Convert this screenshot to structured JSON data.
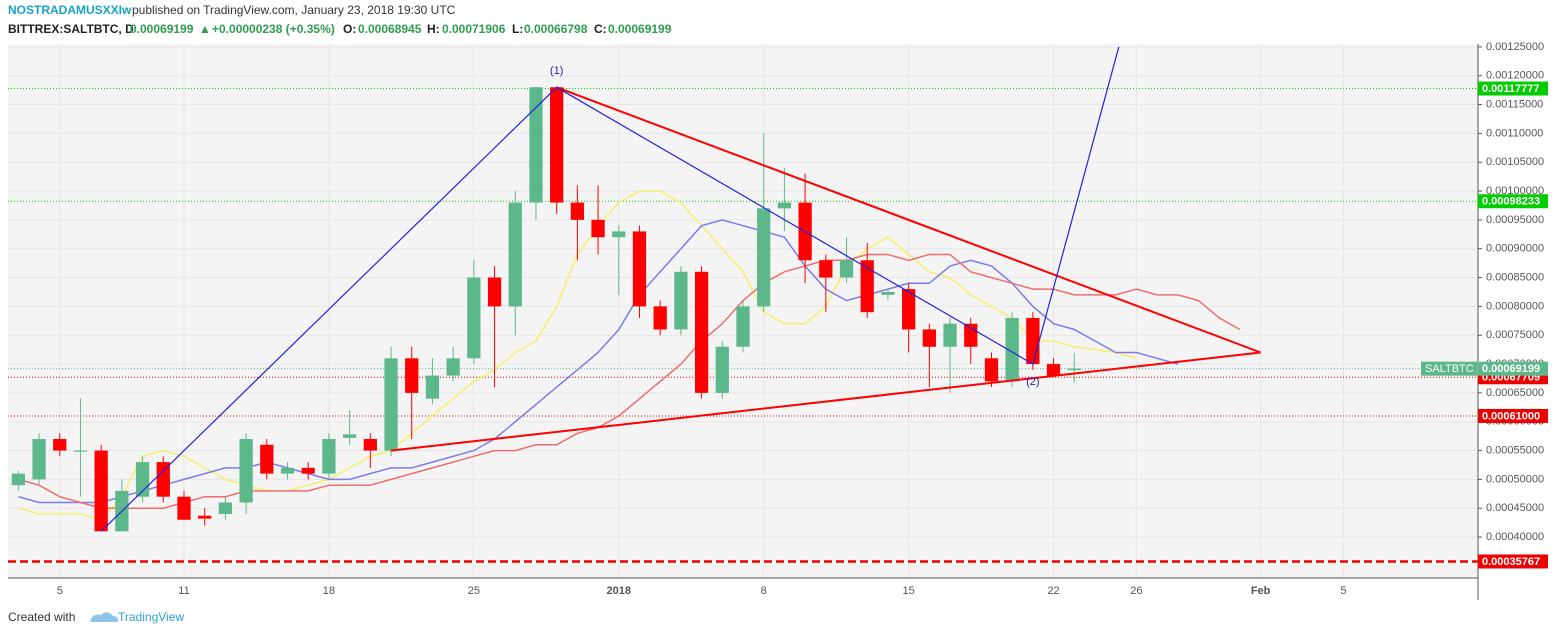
{
  "header": {
    "author": "NOSTRADAMUSXXIw",
    "published": "published on TradingView.com, January 23, 2018 19:30 UTC",
    "symbol": "BITTREX:SALTBTC, D",
    "last": "0.00069199",
    "arrow": "▲",
    "change": "+0.00000238 (+0.35%)",
    "o_label": "O:",
    "o": "0.00068945",
    "h_label": "H:",
    "h": "0.00071906",
    "l_label": "L:",
    "l": "0.00066798",
    "c_label": "C:",
    "c": "0.00069199"
  },
  "footer": {
    "created": "Created with",
    "brand": "TradingView"
  },
  "chart_data": {
    "type": "candlestick",
    "categories": [
      null,
      null,
      "5",
      null,
      null,
      null,
      null,
      null,
      "11",
      null,
      null,
      null,
      null,
      null,
      null,
      "18",
      null,
      null,
      null,
      null,
      null,
      null,
      "25",
      null,
      null,
      null,
      null,
      null,
      null,
      "2018",
      null,
      null,
      null,
      null,
      null,
      null,
      "8",
      null,
      null,
      null,
      null,
      null,
      null,
      "15",
      null,
      null,
      null,
      null,
      null,
      null,
      "22",
      null,
      null,
      null,
      "26",
      null,
      null,
      null,
      null,
      null,
      "Feb",
      null,
      null,
      null,
      "5",
      null,
      null,
      null,
      null,
      null,
      null
    ],
    "up_color": "#5cb88a",
    "down_color": "#ff0000",
    "open": [
      0.00049,
      0.0005,
      0.00057,
      0.000548,
      0.00055,
      0.00041,
      0.00047,
      0.00053,
      0.00047,
      0.000437,
      0.00044,
      0.00046,
      0.00056,
      0.00051,
      0.00052,
      0.00051,
      0.000572,
      0.00057,
      0.00055,
      0.00071,
      0.00064,
      0.00068,
      0.00071,
      0.00085,
      0.0008,
      0.00098,
      0.00118,
      0.00098,
      0.00095,
      0.00092,
      0.00093,
      0.0008,
      0.00076,
      0.00086,
      0.00065,
      0.00073,
      0.0008,
      0.00097,
      0.00098,
      0.00088,
      0.00085,
      0.00088,
      0.00082,
      0.00083,
      0.00076,
      0.00073,
      0.00077,
      0.00071,
      0.00067,
      0.00078,
      0.0007,
      0.00068945,
      null,
      null,
      null,
      null,
      null,
      null,
      null,
      null,
      null,
      null,
      null,
      null,
      null,
      null,
      null,
      null,
      null,
      null,
      null
    ],
    "high": [
      0.000515,
      0.00058,
      0.00058,
      0.00064,
      0.00056,
      0.0005,
      0.00054,
      0.00054,
      0.00048,
      0.00045,
      0.00047,
      0.00058,
      0.00057,
      0.00053,
      0.00053,
      0.00058,
      0.00062,
      0.00058,
      0.00073,
      0.00073,
      0.00071,
      0.00073,
      0.00088,
      0.00087,
      0.001,
      0.00118,
      0.00118,
      0.00101,
      0.00101,
      0.00094,
      0.00094,
      0.00081,
      0.00087,
      0.00087,
      0.00074,
      0.00081,
      0.0011,
      0.00104,
      0.00103,
      0.00089,
      0.00092,
      0.00091,
      0.00083,
      0.00084,
      0.00077,
      0.00078,
      0.00078,
      0.00072,
      0.00079,
      0.00079,
      0.00071,
      0.00071906,
      null,
      null,
      null,
      null,
      null,
      null,
      null,
      null,
      null,
      null,
      null,
      null,
      null,
      null,
      null,
      null,
      null,
      null,
      null
    ],
    "low": [
      0.00048,
      0.00049,
      0.00054,
      0.00047,
      0.00041,
      0.00041,
      0.00046,
      0.00046,
      0.00043,
      0.00042,
      0.00043,
      0.00044,
      0.0005,
      0.0005,
      0.0005,
      0.0005,
      0.00056,
      0.00052,
      0.00054,
      0.00057,
      0.00063,
      0.00067,
      0.0007,
      0.00066,
      0.00075,
      0.00095,
      0.00096,
      0.00088,
      0.00089,
      0.00082,
      0.00078,
      0.00075,
      0.00075,
      0.00064,
      0.00064,
      0.00072,
      0.00079,
      0.00093,
      0.00084,
      0.00079,
      0.00084,
      0.00078,
      0.00081,
      0.00072,
      0.00066,
      0.00065,
      0.0007,
      0.00066,
      0.00066,
      0.00069,
      0.00068,
      0.00066798,
      null,
      null,
      null,
      null,
      null,
      null,
      null,
      null,
      null,
      null,
      null,
      null,
      null,
      null,
      null,
      null,
      null,
      null,
      null
    ],
    "close": [
      0.00051,
      0.00057,
      0.00055,
      0.00055,
      0.00041,
      0.00048,
      0.00053,
      0.00047,
      0.00043,
      0.000432,
      0.00046,
      0.00057,
      0.00051,
      0.00052,
      0.00051,
      0.00057,
      0.000578,
      0.00055,
      0.00071,
      0.00065,
      0.00068,
      0.00071,
      0.00085,
      0.0008,
      0.00098,
      0.00118,
      0.00098,
      0.00095,
      0.00092,
      0.00093,
      0.0008,
      0.00076,
      0.00086,
      0.00065,
      0.00073,
      0.0008,
      0.00097,
      0.00098,
      0.00088,
      0.00085,
      0.00088,
      0.00079,
      0.000825,
      0.00076,
      0.00073,
      0.00077,
      0.00073,
      0.00067,
      0.00078,
      0.0007,
      0.00068,
      0.00069199,
      null,
      null,
      null,
      null,
      null,
      null,
      null,
      null,
      null,
      null,
      null,
      null,
      null,
      null,
      null,
      null,
      null,
      null,
      null
    ],
    "moving_averages": [
      {
        "color": "#f5ee6a",
        "values": [
          0.00045,
          0.00044,
          0.00044,
          0.00044,
          0.00043,
          0.00047,
          0.00054,
          0.00055,
          0.00054,
          0.00052,
          0.0005,
          0.00049,
          0.00048,
          0.00048,
          0.00049,
          0.0005,
          0.00052,
          0.00054,
          0.00055,
          0.00058,
          0.00061,
          0.00064,
          0.00067,
          0.00069,
          0.00072,
          0.00074,
          0.0008,
          0.00089,
          0.00094,
          0.00098,
          0.001,
          0.001,
          0.00098,
          0.00094,
          0.0009,
          0.00086,
          0.00079,
          0.00077,
          0.00077,
          0.0008,
          0.00087,
          0.0009,
          0.00092,
          0.00089,
          0.00086,
          0.00085,
          0.00082,
          0.0008,
          0.00078,
          0.00074,
          0.00074,
          0.00073,
          0.000725,
          0.00072,
          0.00071,
          null,
          null,
          null,
          null,
          null,
          null,
          null,
          null,
          null,
          null,
          null,
          null,
          null,
          null,
          null,
          null
        ]
      },
      {
        "color": "#7b7bee",
        "values": [
          0.00047,
          0.00046,
          0.00046,
          0.00046,
          0.00046,
          0.00047,
          0.00048,
          0.00049,
          0.0005,
          0.00051,
          0.00052,
          0.00052,
          0.00053,
          0.00052,
          0.00051,
          0.0005,
          0.0005,
          0.00051,
          0.00052,
          0.00052,
          0.00053,
          0.00054,
          0.00055,
          0.00057,
          0.0006,
          0.00063,
          0.00066,
          0.00069,
          0.00072,
          0.00076,
          0.00082,
          0.00086,
          0.0009,
          0.00094,
          0.00095,
          0.00094,
          0.00093,
          0.00092,
          0.00087,
          0.00083,
          0.00081,
          0.00082,
          0.00083,
          0.00084,
          0.00084,
          0.00087,
          0.00088,
          0.00087,
          0.00084,
          0.0008,
          0.00077,
          0.00076,
          0.00074,
          0.00072,
          0.00072,
          0.00071,
          0.0007,
          null,
          null,
          null,
          null,
          null,
          null,
          null,
          null,
          null,
          null,
          null,
          null,
          null,
          null
        ]
      },
      {
        "color": "#ee6e6e",
        "values": [
          0.0005,
          0.00049,
          0.00047,
          0.00046,
          0.00045,
          0.00045,
          0.00045,
          0.00045,
          0.00046,
          0.00047,
          0.00047,
          0.00048,
          0.00048,
          0.00048,
          0.00048,
          0.00049,
          0.00049,
          0.00049,
          0.0005,
          0.00051,
          0.00052,
          0.00053,
          0.00054,
          0.00055,
          0.00055,
          0.00056,
          0.00056,
          0.00058,
          0.00059,
          0.00061,
          0.00064,
          0.00067,
          0.0007,
          0.00074,
          0.00077,
          0.00081,
          0.00084,
          0.00086,
          0.00087,
          0.00088,
          0.00088,
          0.00089,
          0.00089,
          0.00088,
          0.00089,
          0.00089,
          0.00086,
          0.00085,
          0.00084,
          0.00083,
          0.00083,
          0.00082,
          0.00082,
          0.00082,
          0.00083,
          0.00082,
          0.00082,
          0.00081,
          0.00078,
          0.00076,
          null,
          null,
          null,
          null,
          null,
          null,
          null,
          null,
          null,
          null,
          null
        ]
      }
    ],
    "drawings": [
      {
        "color": "#ff0000",
        "points": [
          [
            26,
            0.00118
          ],
          [
            60,
            0.00072
          ]
        ]
      },
      {
        "color": "#ff0000",
        "points": [
          [
            18,
            0.00055
          ],
          [
            60,
            0.00072
          ]
        ]
      },
      {
        "color": "#2222dd",
        "points": [
          [
            4,
            0.00041
          ],
          [
            26,
            0.00118
          ],
          [
            49,
            0.0007
          ],
          [
            53.15,
            0.00125
          ]
        ]
      }
    ],
    "annotations": [
      {
        "text": "(1)",
        "x": 26,
        "y": 0.00118
      },
      {
        "text": "(2)",
        "x": 49,
        "y": 0.0007
      }
    ],
    "levels": [
      {
        "value": 0.00117777,
        "label": "0.00117777",
        "color": "#00cc00",
        "style": "dotted"
      },
      {
        "value": 0.00098233,
        "label": "0.00098233",
        "color": "#00cc00",
        "style": "dotted"
      },
      {
        "value": 0.00067709,
        "label": "0.00067709",
        "color": "#ee0000",
        "style": "dotted"
      },
      {
        "value": 0.00061,
        "label": "0.00061000",
        "color": "#ee0000",
        "style": "dotted"
      },
      {
        "value": 0.00035767,
        "label": "0.00035767",
        "color": "#ee0000",
        "style": "dashed"
      }
    ],
    "price_line": {
      "name": "SALTBTC",
      "value": 0.00069199,
      "label": "0.00069199",
      "color": "#5cb88a"
    },
    "ylim": [
      0.000329,
      0.001255
    ],
    "yticks": [
      {
        "value": 0.0004,
        "label": "0.00040000"
      },
      {
        "value": 0.00045,
        "label": "0.00045000"
      },
      {
        "value": 0.0005,
        "label": "0.00050000"
      },
      {
        "value": 0.00055,
        "label": "0.00055000"
      },
      {
        "value": 0.0006,
        "label": "0.00060000"
      },
      {
        "value": 0.00065,
        "label": "0.00065000"
      },
      {
        "value": 0.0007,
        "label": "0.00070000"
      },
      {
        "value": 0.00075,
        "label": "0.00075000"
      },
      {
        "value": 0.0008,
        "label": "0.00080000"
      },
      {
        "value": 0.00085,
        "label": "0.00085000"
      },
      {
        "value": 0.0009,
        "label": "0.00090000"
      },
      {
        "value": 0.00095,
        "label": "0.00095000"
      },
      {
        "value": 0.001,
        "label": "0.00100000"
      },
      {
        "value": 0.00105,
        "label": "0.00105000"
      },
      {
        "value": 0.0011,
        "label": "0.00110000"
      },
      {
        "value": 0.00115,
        "label": "0.00115000"
      },
      {
        "value": 0.0012,
        "label": "0.00120000"
      },
      {
        "value": 0.00125,
        "label": "0.00125000"
      }
    ],
    "grid": true
  }
}
